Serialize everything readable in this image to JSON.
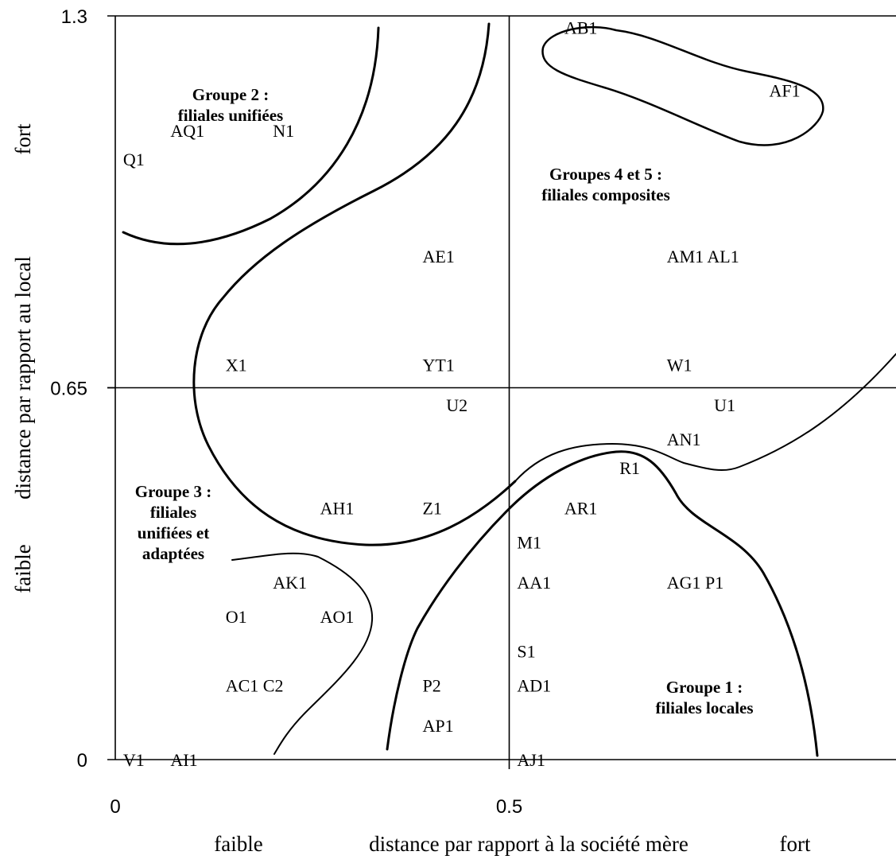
{
  "chart_data": {
    "type": "scatter",
    "title": "",
    "xlabel": {
      "left": "faible",
      "center": "distance par rapport à la société mère",
      "right": "fort"
    },
    "ylabel": {
      "bottom": "faible",
      "center": "distance par rapport au local",
      "top": "fort"
    },
    "xlim": [
      0,
      1
    ],
    "ylim": [
      0,
      1.3
    ],
    "x_ticks": [
      "0",
      "0.5"
    ],
    "y_ticks": [
      "0",
      "0.65",
      "1.3"
    ],
    "reference_lines": {
      "x": 0.5,
      "y": 0.65
    },
    "grid": false,
    "points": [
      {
        "label": "Q1",
        "x": 0.01,
        "y": 1.05
      },
      {
        "label": "AQ1",
        "x": 0.07,
        "y": 1.1
      },
      {
        "label": "N1",
        "x": 0.2,
        "y": 1.1
      },
      {
        "label": "AB1",
        "x": 0.57,
        "y": 1.28
      },
      {
        "label": "AF1",
        "x": 0.83,
        "y": 1.17
      },
      {
        "label": "AE1",
        "x": 0.39,
        "y": 0.88
      },
      {
        "label": "AM1 AL1",
        "x": 0.7,
        "y": 0.88
      },
      {
        "label": "X1",
        "x": 0.14,
        "y": 0.69
      },
      {
        "label": "YT1",
        "x": 0.39,
        "y": 0.69
      },
      {
        "label": "W1",
        "x": 0.7,
        "y": 0.69
      },
      {
        "label": "U2",
        "x": 0.42,
        "y": 0.62
      },
      {
        "label": "U1",
        "x": 0.76,
        "y": 0.62
      },
      {
        "label": "AN1",
        "x": 0.7,
        "y": 0.56
      },
      {
        "label": "R1",
        "x": 0.64,
        "y": 0.51
      },
      {
        "label": "AR1",
        "x": 0.57,
        "y": 0.44
      },
      {
        "label": "AH1",
        "x": 0.26,
        "y": 0.44
      },
      {
        "label": "Z1",
        "x": 0.39,
        "y": 0.44
      },
      {
        "label": "M1",
        "x": 0.51,
        "y": 0.38
      },
      {
        "label": "AK1",
        "x": 0.2,
        "y": 0.31
      },
      {
        "label": "AA1",
        "x": 0.51,
        "y": 0.31
      },
      {
        "label": "AG1 P1",
        "x": 0.7,
        "y": 0.31
      },
      {
        "label": "O1",
        "x": 0.14,
        "y": 0.25
      },
      {
        "label": "AO1",
        "x": 0.26,
        "y": 0.25
      },
      {
        "label": "S1",
        "x": 0.51,
        "y": 0.19
      },
      {
        "label": "AC1 C2",
        "x": 0.14,
        "y": 0.13
      },
      {
        "label": "P2",
        "x": 0.39,
        "y": 0.13
      },
      {
        "label": "AD1",
        "x": 0.51,
        "y": 0.13
      },
      {
        "label": "AP1",
        "x": 0.39,
        "y": 0.06
      },
      {
        "label": "V1",
        "x": 0.01,
        "y": 0.0
      },
      {
        "label": "AI1",
        "x": 0.07,
        "y": 0.0
      },
      {
        "label": "AJ1",
        "x": 0.51,
        "y": 0.0
      }
    ],
    "groups": [
      {
        "name": [
          "Groupe 2 :",
          "filiales unifiées"
        ]
      },
      {
        "name": [
          "Groupes 4 et 5 :",
          "filiales composites"
        ]
      },
      {
        "name": [
          "Groupe 3 :",
          "filiales",
          "unifiées et",
          "adaptées"
        ]
      },
      {
        "name": [
          "Groupe 1 :",
          "filiales locales"
        ]
      }
    ]
  }
}
